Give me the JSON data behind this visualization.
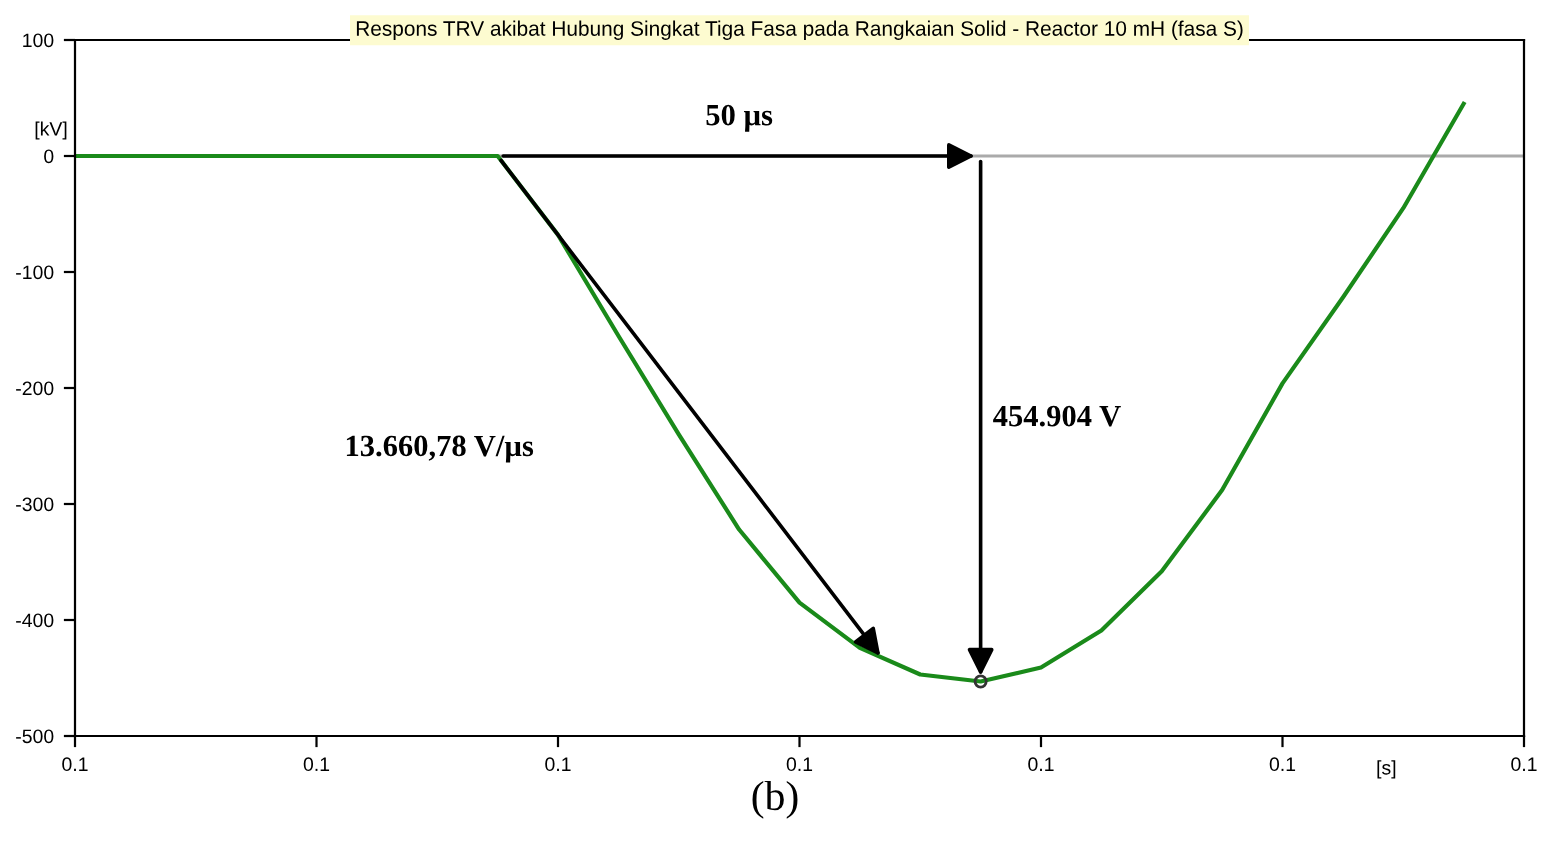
{
  "chart_data": {
    "type": "line",
    "title": "Respons TRV akibat Hubung Singkat Tiga Fasa pada Rangkaian Solid - Reactor 10 mH (fasa S)",
    "ylabel": "[kV]",
    "xlabel": "[s]",
    "categories": [
      "0.1",
      null,
      null,
      null,
      "0.1",
      null,
      null,
      null,
      "0.1",
      null,
      null,
      null,
      "0.1",
      null,
      null,
      null,
      "0.1",
      null,
      null,
      null,
      "0.1",
      null,
      null,
      null,
      "0.1"
    ],
    "series": [
      {
        "color": "#1a8a1a",
        "values": [
          0,
          0,
          0,
          0,
          0,
          0,
          0,
          0,
          -68,
          -155,
          -240,
          -322,
          -385,
          -424,
          -447,
          -453,
          -441,
          -409,
          -358,
          -288,
          -196,
          -122,
          -45,
          45,
          null
        ]
      }
    ],
    "ylim": [
      -500,
      100
    ],
    "yticks": [
      -500,
      -400,
      -300,
      -200,
      -100,
      0,
      100
    ],
    "ref_lines": [
      {
        "axis": "y",
        "value": 0,
        "color": "#aaaaaa"
      }
    ],
    "annotations": [
      "50 µs",
      "454.904 V",
      "13.660,78 V/µs",
      "(b)"
    ],
    "grid": false
  }
}
